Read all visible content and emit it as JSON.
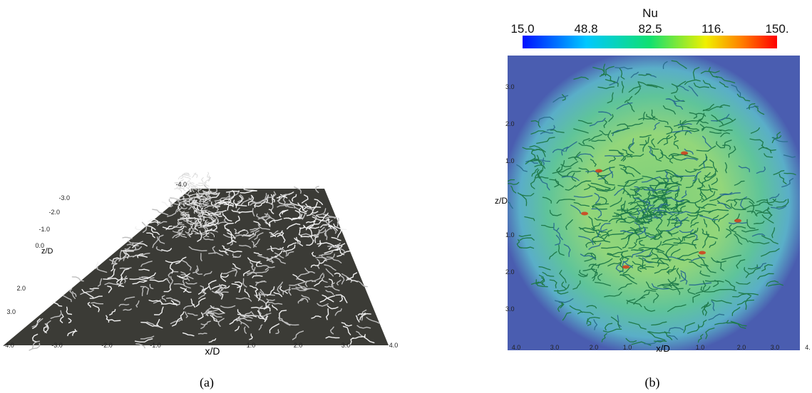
{
  "panel_a": {
    "caption": "(a)",
    "x_label": "x/D",
    "z_label": "z/D",
    "x_ticks": [
      "-4.0",
      "-3.0",
      "-2.0",
      "-1.0",
      "1.0",
      "2.0",
      "3.0",
      "4.0"
    ],
    "z_ticks": [
      "-4.0",
      "-3.0",
      "-2.0",
      "-1.0",
      "0.0",
      "2.0",
      "3.0"
    ]
  },
  "panel_b": {
    "caption": "(b)",
    "colorbar_title": "Nu",
    "colorbar_ticks": [
      "15.0",
      "48.8",
      "82.5",
      "116.",
      "150."
    ],
    "x_label": "x/D",
    "z_label": "z/D",
    "x_ticks": [
      "4.0",
      "3.0",
      "2.0",
      "1.0",
      "1.0",
      "2.0",
      "3.0",
      "4."
    ],
    "z_ticks": [
      "3.0",
      "2.0",
      "1.0",
      "1.0",
      "2.0",
      "3.0"
    ]
  }
}
